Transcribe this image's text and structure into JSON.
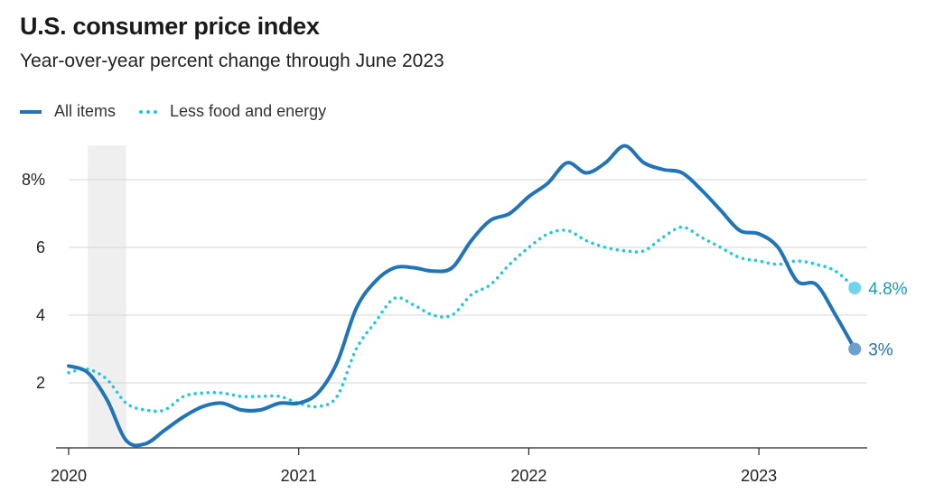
{
  "chart_data": {
    "type": "line",
    "title": "U.S. consumer price index",
    "subtitle": "Year-over-year percent change through June 2023",
    "xlabel": "",
    "ylabel": "",
    "x_start": "2020-01",
    "x_end": "2023-06",
    "x_ticks": [
      "2020",
      "2021",
      "2022",
      "2023"
    ],
    "y_ticks": [
      "2",
      "4",
      "6",
      "8%"
    ],
    "y_tick_values": [
      2,
      4,
      6,
      8
    ],
    "ylim": [
      0,
      9.2
    ],
    "grid": "horizontal",
    "legend_position": "top-left",
    "recession_shading": {
      "start": "2020-02",
      "end": "2020-04"
    },
    "series": [
      {
        "name": "All items",
        "color": "#2074b8",
        "style": "solid",
        "end_label": "3%",
        "values": [
          2.5,
          2.3,
          1.5,
          0.3,
          0.2,
          0.6,
          1.0,
          1.3,
          1.4,
          1.2,
          1.2,
          1.4,
          1.4,
          1.7,
          2.6,
          4.2,
          5.0,
          5.4,
          5.4,
          5.3,
          5.4,
          6.2,
          6.8,
          7.0,
          7.5,
          7.9,
          8.5,
          8.2,
          8.5,
          9.0,
          8.5,
          8.3,
          8.2,
          7.7,
          7.1,
          6.5,
          6.4,
          6.0,
          5.0,
          4.9,
          4.0,
          3.0
        ]
      },
      {
        "name": "Less food and energy",
        "color": "#1ec8e6",
        "style": "dotted",
        "end_label": "4.8%",
        "values": [
          2.3,
          2.4,
          2.1,
          1.4,
          1.2,
          1.2,
          1.6,
          1.7,
          1.7,
          1.6,
          1.6,
          1.6,
          1.4,
          1.3,
          1.6,
          3.0,
          3.8,
          4.5,
          4.3,
          4.0,
          4.0,
          4.6,
          4.9,
          5.5,
          6.0,
          6.4,
          6.5,
          6.2,
          6.0,
          5.9,
          5.9,
          6.3,
          6.6,
          6.3,
          6.0,
          5.7,
          5.6,
          5.5,
          5.6,
          5.5,
          5.3,
          4.8
        ]
      }
    ]
  }
}
